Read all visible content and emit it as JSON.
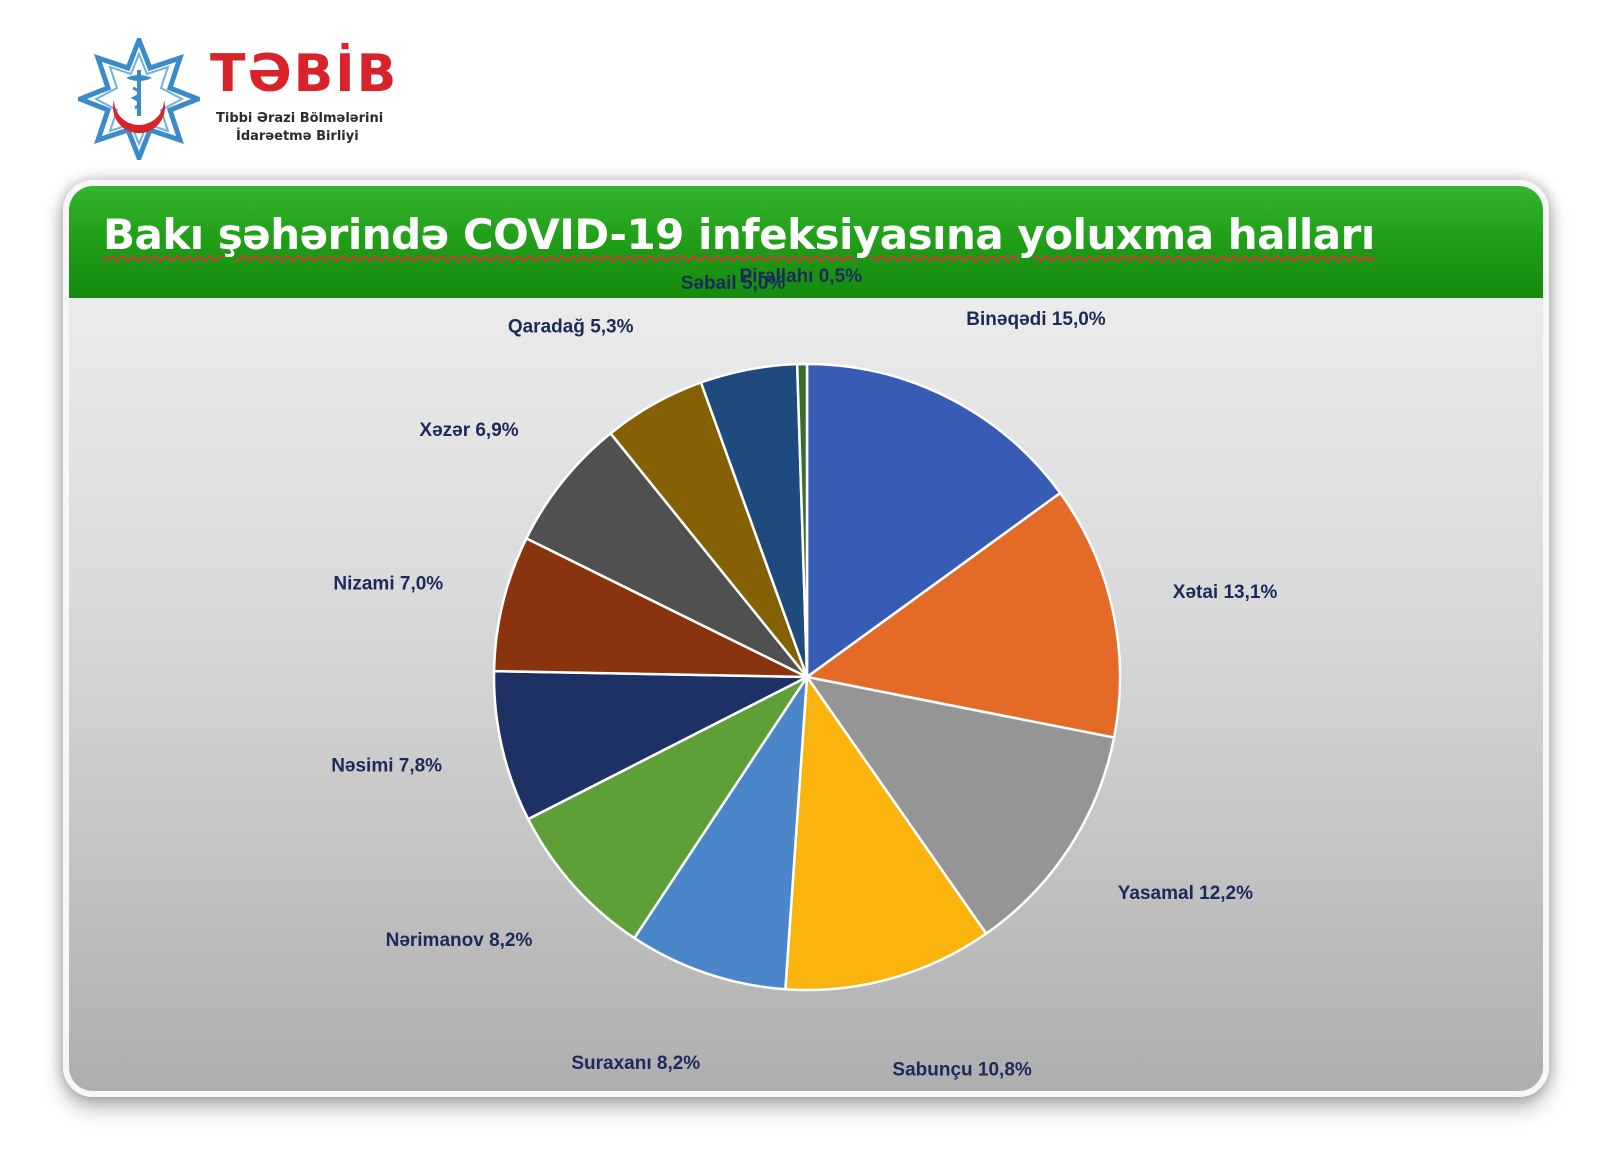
{
  "logo": {
    "name": "TƏBİB",
    "subtitle_line1": "Tibbi Ərazi Bölmələrini",
    "subtitle_line2": "İdarəetmə Birliyi"
  },
  "title": "Bakı şəhərində COVID-19 infeksiyasına yoluxma halları",
  "chart_data": {
    "type": "pie",
    "title": "Bakı şəhərində COVID-19 infeksiyasına yoluxma halları",
    "start_angle_deg": 0,
    "direction": "clockwise",
    "slices": [
      {
        "name": "Binəqədi",
        "value": 15.0,
        "label": "Binəqədi 15,0%",
        "color": "#385bb5"
      },
      {
        "name": "Xətai",
        "value": 13.1,
        "label": "Xətai 13,1%",
        "color": "#e46a28"
      },
      {
        "name": "Yasamal",
        "value": 12.2,
        "label": "Yasamal 12,2%",
        "color": "#959595"
      },
      {
        "name": "Sabunçu",
        "value": 10.8,
        "label": "Sabunçu 10,8%",
        "color": "#fbb40e"
      },
      {
        "name": "Suraxanı",
        "value": 8.2,
        "label": "Suraxanı 8,2%",
        "color": "#4b86cb"
      },
      {
        "name": "Nərimanov",
        "value": 8.2,
        "label": "Nərimanov 8,2%",
        "color": "#5e9f37"
      },
      {
        "name": "Nəsimi",
        "value": 7.8,
        "label": "Nəsimi 7,8%",
        "color": "#1d3165"
      },
      {
        "name": "Nizami",
        "value": 7.0,
        "label": "Nizami 7,0%",
        "color": "#8a330f"
      },
      {
        "name": "Xəzər",
        "value": 6.9,
        "label": "Xəzər 6,9%",
        "color": "#505050"
      },
      {
        "name": "Qaradağ",
        "value": 5.3,
        "label": "Qaradağ 5,3%",
        "color": "#856105"
      },
      {
        "name": "Səbail",
        "value": 5.0,
        "label": "Səbail 5,0%",
        "color": "#1e4a7e"
      },
      {
        "name": "Pirallahı",
        "value": 0.5,
        "label": "Pirallahı 0,5%",
        "color": "#3a6e28"
      }
    ]
  }
}
